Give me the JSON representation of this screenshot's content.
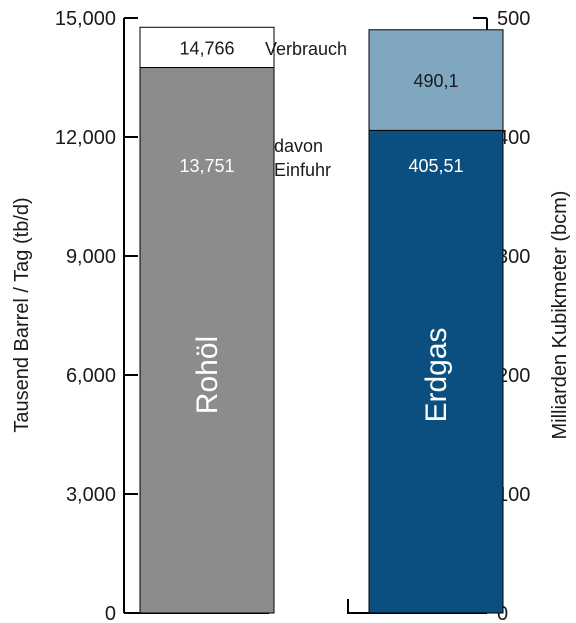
{
  "chart_data": {
    "type": "bar",
    "left_axis": {
      "label": "Tausend Barrel / Tag (tb/d)",
      "ylim": [
        0,
        15000
      ],
      "ticks": [
        0,
        3000,
        6000,
        9000,
        12000,
        15000
      ],
      "tick_labels": [
        "0",
        "3,000",
        "6,000",
        "9,000",
        "12,000",
        "15,000"
      ]
    },
    "right_axis": {
      "label": "Milliarden Kubikmeter (bcm)",
      "ylim": [
        0,
        500
      ],
      "ticks": [
        0,
        100,
        200,
        300,
        400,
        500
      ],
      "tick_labels": [
        "0",
        "100",
        "200",
        "300",
        "400",
        "500"
      ]
    },
    "bars": [
      {
        "name": "Rohöl",
        "axis": "left",
        "consumption": 14766,
        "consumption_label": "14,766",
        "imports": 13751,
        "imports_label": "13,751",
        "color_consumption": "#ffffff",
        "color_imports": "#8c8c8c"
      },
      {
        "name": "Erdgas",
        "axis": "right",
        "consumption": 490.1,
        "consumption_label": "490,1",
        "imports": 405.51,
        "imports_label": "405,51",
        "color_consumption": "#7fa7c0",
        "color_imports": "#0a4f7f"
      }
    ],
    "annotations": {
      "consumption": "Verbrauch",
      "imports_line1": "davon",
      "imports_line2": "Einfuhr"
    },
    "grid": false,
    "legend": "none"
  }
}
